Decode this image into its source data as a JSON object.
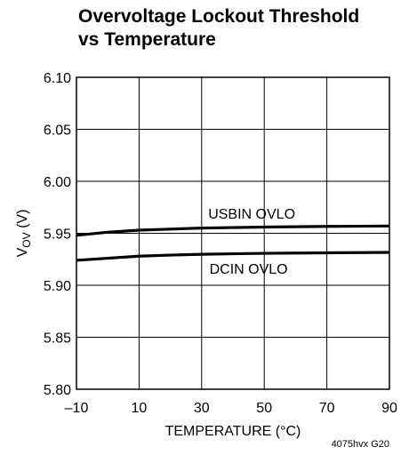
{
  "chart_data": {
    "type": "line",
    "title_lines": [
      "Overvoltage Lockout Threshold",
      "vs Temperature"
    ],
    "xlabel": "TEMPERATURE (°C)",
    "ylabel_main": "V",
    "ylabel_sub": "OV",
    "ylabel_unit": " (V)",
    "xlim": [
      -10,
      90
    ],
    "ylim": [
      5.8,
      6.1
    ],
    "x_ticks": [
      -10,
      10,
      30,
      50,
      70,
      90
    ],
    "x_tick_labels": [
      "–10",
      "10",
      "30",
      "50",
      "70",
      "90"
    ],
    "y_ticks": [
      5.8,
      5.85,
      5.9,
      5.95,
      6.0,
      6.05,
      6.1
    ],
    "y_tick_labels": [
      "5.80",
      "5.85",
      "5.90",
      "5.95",
      "6.00",
      "6.05",
      "6.10"
    ],
    "grid": true,
    "series": [
      {
        "name": "USBIN OVLO",
        "x": [
          -10,
          0,
          10,
          20,
          30,
          40,
          50,
          60,
          70,
          80,
          90
        ],
        "y": [
          5.948,
          5.951,
          5.953,
          5.954,
          5.955,
          5.9555,
          5.956,
          5.9563,
          5.9566,
          5.9568,
          5.957
        ]
      },
      {
        "name": "DCIN OVLO",
        "x": [
          -10,
          0,
          10,
          20,
          30,
          40,
          50,
          60,
          70,
          80,
          90
        ],
        "y": [
          5.924,
          5.926,
          5.928,
          5.929,
          5.9298,
          5.9303,
          5.9307,
          5.931,
          5.9312,
          5.9314,
          5.9316
        ]
      }
    ],
    "annotations": [
      {
        "text": "USBIN OVLO",
        "x": 46,
        "y": 5.964
      },
      {
        "text": "DCIN OVLO",
        "x": 45,
        "y": 5.911
      }
    ],
    "figure_id": "4075hvx G20"
  }
}
